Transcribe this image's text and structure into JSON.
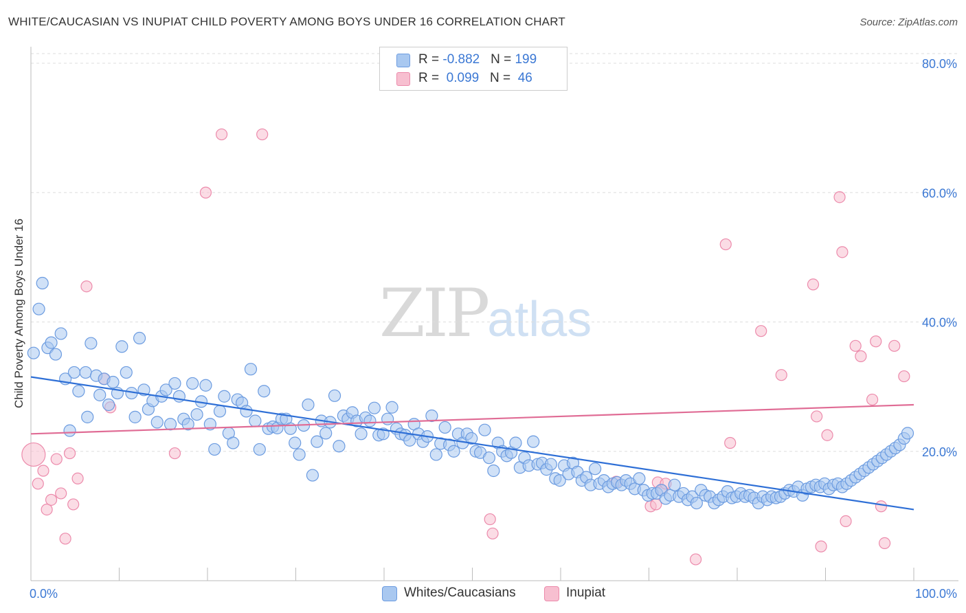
{
  "title": "WHITE/CAUCASIAN VS INUPIAT CHILD POVERTY AMONG BOYS UNDER 16 CORRELATION CHART",
  "source": "Source: ZipAtlas.com",
  "watermark": {
    "zip": "ZIP",
    "atlas": "atlas"
  },
  "legend": {
    "rows": [
      {
        "r_label": "R = ",
        "r_value": "-0.882",
        "n_label": "N = ",
        "n_value": "199",
        "color": "#a9c8f0"
      },
      {
        "r_label": "R = ",
        "r_value": " 0.099",
        "n_label": "N = ",
        "n_value": " 46",
        "color": "#f7bfd0"
      }
    ]
  },
  "bottom_legend": [
    {
      "label": "Whites/Caucasians",
      "color": "#a9c8f0"
    },
    {
      "label": "Inupiat",
      "color": "#f7bfd0"
    }
  ],
  "colors": {
    "blue_fill": "#a9c8f0",
    "blue_stroke": "#6b9be0",
    "blue_line": "#2e6fd6",
    "pink_fill": "#f7bfd0",
    "pink_stroke": "#ec8aab",
    "pink_line": "#e06c95",
    "tick_label": "#3b78d4",
    "grid": "#dddddd"
  },
  "chart_data": {
    "type": "scatter",
    "title": "WHITE/CAUCASIAN VS INUPIAT CHILD POVERTY AMONG BOYS UNDER 16 CORRELATION CHART",
    "xlabel": "",
    "ylabel": "Child Poverty Among Boys Under 16",
    "xlim": [
      0,
      100
    ],
    "ylim": [
      0,
      80
    ],
    "x_tick_labels": [
      "0.0%",
      "100.0%"
    ],
    "y_ticks": [
      20,
      40,
      60,
      80
    ],
    "y_tick_labels": [
      "20.0%",
      "40.0%",
      "60.0%",
      "80.0%"
    ],
    "grid": true,
    "legend_position": "top-center",
    "series": [
      {
        "name": "Whites/Caucasians",
        "color": "#a9c8f0",
        "trend": {
          "x": [
            0,
            100
          ],
          "y": [
            31.5,
            11.0
          ]
        },
        "points": [
          [
            0.3,
            35.2
          ],
          [
            1.3,
            46.0
          ],
          [
            0.9,
            42.0
          ],
          [
            1.9,
            36.0
          ],
          [
            2.3,
            36.8
          ],
          [
            2.8,
            35.0
          ],
          [
            3.4,
            38.2
          ],
          [
            3.9,
            31.2
          ],
          [
            4.4,
            23.2
          ],
          [
            4.9,
            32.2
          ],
          [
            5.4,
            29.3
          ],
          [
            6.2,
            32.2
          ],
          [
            6.4,
            25.3
          ],
          [
            6.8,
            36.7
          ],
          [
            7.4,
            31.7
          ],
          [
            7.8,
            28.7
          ],
          [
            8.3,
            31.2
          ],
          [
            8.8,
            27.2
          ],
          [
            9.3,
            30.7
          ],
          [
            9.8,
            29.0
          ],
          [
            10.3,
            36.2
          ],
          [
            10.8,
            32.2
          ],
          [
            11.4,
            29.0
          ],
          [
            11.8,
            25.3
          ],
          [
            12.3,
            37.5
          ],
          [
            12.8,
            29.5
          ],
          [
            13.3,
            26.5
          ],
          [
            13.8,
            27.8
          ],
          [
            14.3,
            24.5
          ],
          [
            14.8,
            28.5
          ],
          [
            15.3,
            29.5
          ],
          [
            15.8,
            24.2
          ],
          [
            16.3,
            30.5
          ],
          [
            16.8,
            28.5
          ],
          [
            17.3,
            25.0
          ],
          [
            17.8,
            24.2
          ],
          [
            18.3,
            30.5
          ],
          [
            18.8,
            25.7
          ],
          [
            19.3,
            27.7
          ],
          [
            19.8,
            30.2
          ],
          [
            20.3,
            24.2
          ],
          [
            20.8,
            20.3
          ],
          [
            21.4,
            26.2
          ],
          [
            21.9,
            28.5
          ],
          [
            22.4,
            22.8
          ],
          [
            22.9,
            21.3
          ],
          [
            23.4,
            28.0
          ],
          [
            23.9,
            27.5
          ],
          [
            24.4,
            26.2
          ],
          [
            24.9,
            32.7
          ],
          [
            25.4,
            24.7
          ],
          [
            25.9,
            20.3
          ],
          [
            26.4,
            29.3
          ],
          [
            26.9,
            23.5
          ],
          [
            27.4,
            23.8
          ],
          [
            27.9,
            23.6
          ],
          [
            28.4,
            25.0
          ],
          [
            28.9,
            25.0
          ],
          [
            29.4,
            23.5
          ],
          [
            29.9,
            21.3
          ],
          [
            30.4,
            19.5
          ],
          [
            30.9,
            24.0
          ],
          [
            31.4,
            27.2
          ],
          [
            31.9,
            16.3
          ],
          [
            32.4,
            21.5
          ],
          [
            32.9,
            24.7
          ],
          [
            33.4,
            22.8
          ],
          [
            33.9,
            24.5
          ],
          [
            34.4,
            28.6
          ],
          [
            34.9,
            20.8
          ],
          [
            35.4,
            25.5
          ],
          [
            35.9,
            25.0
          ],
          [
            36.4,
            26.0
          ],
          [
            36.9,
            24.7
          ],
          [
            37.4,
            22.7
          ],
          [
            37.9,
            25.2
          ],
          [
            38.4,
            24.7
          ],
          [
            38.9,
            26.7
          ],
          [
            39.4,
            22.5
          ],
          [
            39.9,
            22.7
          ],
          [
            40.4,
            25.0
          ],
          [
            40.9,
            26.8
          ],
          [
            41.4,
            23.5
          ],
          [
            41.9,
            22.7
          ],
          [
            42.4,
            22.5
          ],
          [
            42.9,
            21.7
          ],
          [
            43.4,
            24.2
          ],
          [
            43.9,
            22.7
          ],
          [
            44.4,
            21.5
          ],
          [
            44.9,
            22.3
          ],
          [
            45.4,
            25.5
          ],
          [
            45.9,
            19.5
          ],
          [
            46.4,
            21.2
          ],
          [
            46.9,
            23.7
          ],
          [
            47.4,
            21.0
          ],
          [
            47.9,
            20.0
          ],
          [
            48.4,
            22.7
          ],
          [
            48.9,
            21.3
          ],
          [
            49.4,
            22.7
          ],
          [
            49.9,
            22.0
          ],
          [
            50.4,
            20.0
          ],
          [
            50.9,
            19.8
          ],
          [
            51.4,
            23.3
          ],
          [
            51.9,
            19.0
          ],
          [
            52.4,
            17.0
          ],
          [
            52.9,
            21.3
          ],
          [
            53.4,
            20.0
          ],
          [
            53.9,
            19.3
          ],
          [
            54.4,
            19.8
          ],
          [
            54.9,
            21.3
          ],
          [
            55.4,
            17.5
          ],
          [
            55.9,
            19.0
          ],
          [
            56.4,
            17.8
          ],
          [
            56.9,
            21.5
          ],
          [
            57.4,
            18.0
          ],
          [
            57.9,
            18.2
          ],
          [
            58.4,
            17.2
          ],
          [
            58.9,
            18.0
          ],
          [
            59.4,
            15.8
          ],
          [
            59.9,
            15.5
          ],
          [
            60.4,
            17.8
          ],
          [
            60.9,
            16.5
          ],
          [
            61.4,
            18.2
          ],
          [
            61.9,
            16.8
          ],
          [
            62.4,
            15.5
          ],
          [
            62.9,
            16.0
          ],
          [
            63.4,
            14.8
          ],
          [
            63.9,
            17.3
          ],
          [
            64.4,
            15.0
          ],
          [
            64.9,
            15.5
          ],
          [
            65.4,
            14.5
          ],
          [
            65.9,
            15.0
          ],
          [
            66.4,
            15.2
          ],
          [
            66.9,
            14.8
          ],
          [
            67.4,
            15.5
          ],
          [
            67.9,
            15.0
          ],
          [
            68.4,
            14.2
          ],
          [
            68.9,
            15.8
          ],
          [
            69.4,
            14.0
          ],
          [
            69.9,
            13.2
          ],
          [
            70.4,
            13.5
          ],
          [
            70.9,
            13.5
          ],
          [
            71.4,
            14.0
          ],
          [
            71.9,
            12.7
          ],
          [
            72.4,
            13.2
          ],
          [
            72.9,
            14.8
          ],
          [
            73.4,
            13.0
          ],
          [
            73.9,
            13.5
          ],
          [
            74.4,
            12.5
          ],
          [
            74.9,
            13.0
          ],
          [
            75.4,
            12.0
          ],
          [
            75.9,
            14.0
          ],
          [
            76.4,
            13.2
          ],
          [
            76.9,
            13.0
          ],
          [
            77.4,
            12.0
          ],
          [
            77.9,
            12.5
          ],
          [
            78.4,
            13.0
          ],
          [
            78.9,
            13.8
          ],
          [
            79.4,
            12.8
          ],
          [
            79.9,
            13.0
          ],
          [
            80.4,
            13.5
          ],
          [
            80.9,
            13.0
          ],
          [
            81.4,
            13.2
          ],
          [
            81.9,
            12.8
          ],
          [
            82.4,
            12.0
          ],
          [
            82.9,
            13.0
          ],
          [
            83.4,
            12.5
          ],
          [
            83.9,
            13.0
          ],
          [
            84.4,
            12.8
          ],
          [
            84.9,
            13.0
          ],
          [
            85.4,
            13.5
          ],
          [
            85.9,
            14.0
          ],
          [
            86.4,
            13.8
          ],
          [
            86.9,
            14.5
          ],
          [
            87.4,
            13.2
          ],
          [
            87.9,
            14.2
          ],
          [
            88.4,
            14.5
          ],
          [
            88.9,
            14.8
          ],
          [
            89.4,
            14.5
          ],
          [
            89.9,
            15.0
          ],
          [
            90.4,
            14.2
          ],
          [
            90.9,
            14.8
          ],
          [
            91.4,
            15.0
          ],
          [
            91.9,
            14.5
          ],
          [
            92.4,
            15.0
          ],
          [
            92.9,
            15.5
          ],
          [
            93.4,
            16.0
          ],
          [
            93.9,
            16.5
          ],
          [
            94.4,
            17.0
          ],
          [
            94.9,
            17.5
          ],
          [
            95.4,
            18.0
          ],
          [
            95.9,
            18.5
          ],
          [
            96.4,
            19.0
          ],
          [
            96.9,
            19.5
          ],
          [
            97.4,
            20.0
          ],
          [
            97.9,
            20.5
          ],
          [
            98.4,
            21.0
          ],
          [
            98.9,
            22.0
          ],
          [
            99.3,
            22.8
          ]
        ]
      },
      {
        "name": "Inupiat",
        "color": "#f7bfd0",
        "trend": {
          "x": [
            0,
            100
          ],
          "y": [
            22.7,
            27.2
          ]
        },
        "points": [
          [
            0.3,
            19.5
          ],
          [
            0.8,
            15.0
          ],
          [
            1.4,
            17.0
          ],
          [
            1.8,
            11.0
          ],
          [
            2.3,
            12.5
          ],
          [
            2.9,
            18.8
          ],
          [
            3.4,
            13.5
          ],
          [
            3.9,
            6.5
          ],
          [
            4.4,
            19.7
          ],
          [
            4.8,
            11.8
          ],
          [
            5.3,
            15.8
          ],
          [
            6.3,
            45.5
          ],
          [
            8.3,
            31.2
          ],
          [
            9.0,
            26.8
          ],
          [
            16.3,
            19.7
          ],
          [
            19.8,
            60.0
          ],
          [
            21.6,
            69.0
          ],
          [
            26.2,
            69.0
          ],
          [
            66.3,
            15.3
          ],
          [
            70.2,
            11.5
          ],
          [
            70.8,
            11.8
          ],
          [
            71.0,
            15.2
          ],
          [
            71.5,
            14.0
          ],
          [
            71.9,
            15.0
          ],
          [
            75.3,
            3.3
          ],
          [
            78.7,
            52.0
          ],
          [
            79.2,
            21.3
          ],
          [
            82.7,
            38.6
          ],
          [
            85.0,
            31.8
          ],
          [
            88.6,
            45.8
          ],
          [
            89.0,
            25.4
          ],
          [
            89.5,
            5.3
          ],
          [
            90.2,
            22.5
          ],
          [
            91.6,
            59.3
          ],
          [
            91.9,
            50.8
          ],
          [
            92.3,
            9.2
          ],
          [
            93.4,
            36.3
          ],
          [
            94.0,
            34.7
          ],
          [
            95.3,
            28.0
          ],
          [
            95.7,
            37.0
          ],
          [
            96.3,
            11.5
          ],
          [
            96.7,
            5.8
          ],
          [
            97.8,
            36.3
          ],
          [
            98.9,
            31.6
          ],
          [
            52.0,
            9.5
          ],
          [
            52.3,
            7.3
          ]
        ]
      }
    ]
  }
}
